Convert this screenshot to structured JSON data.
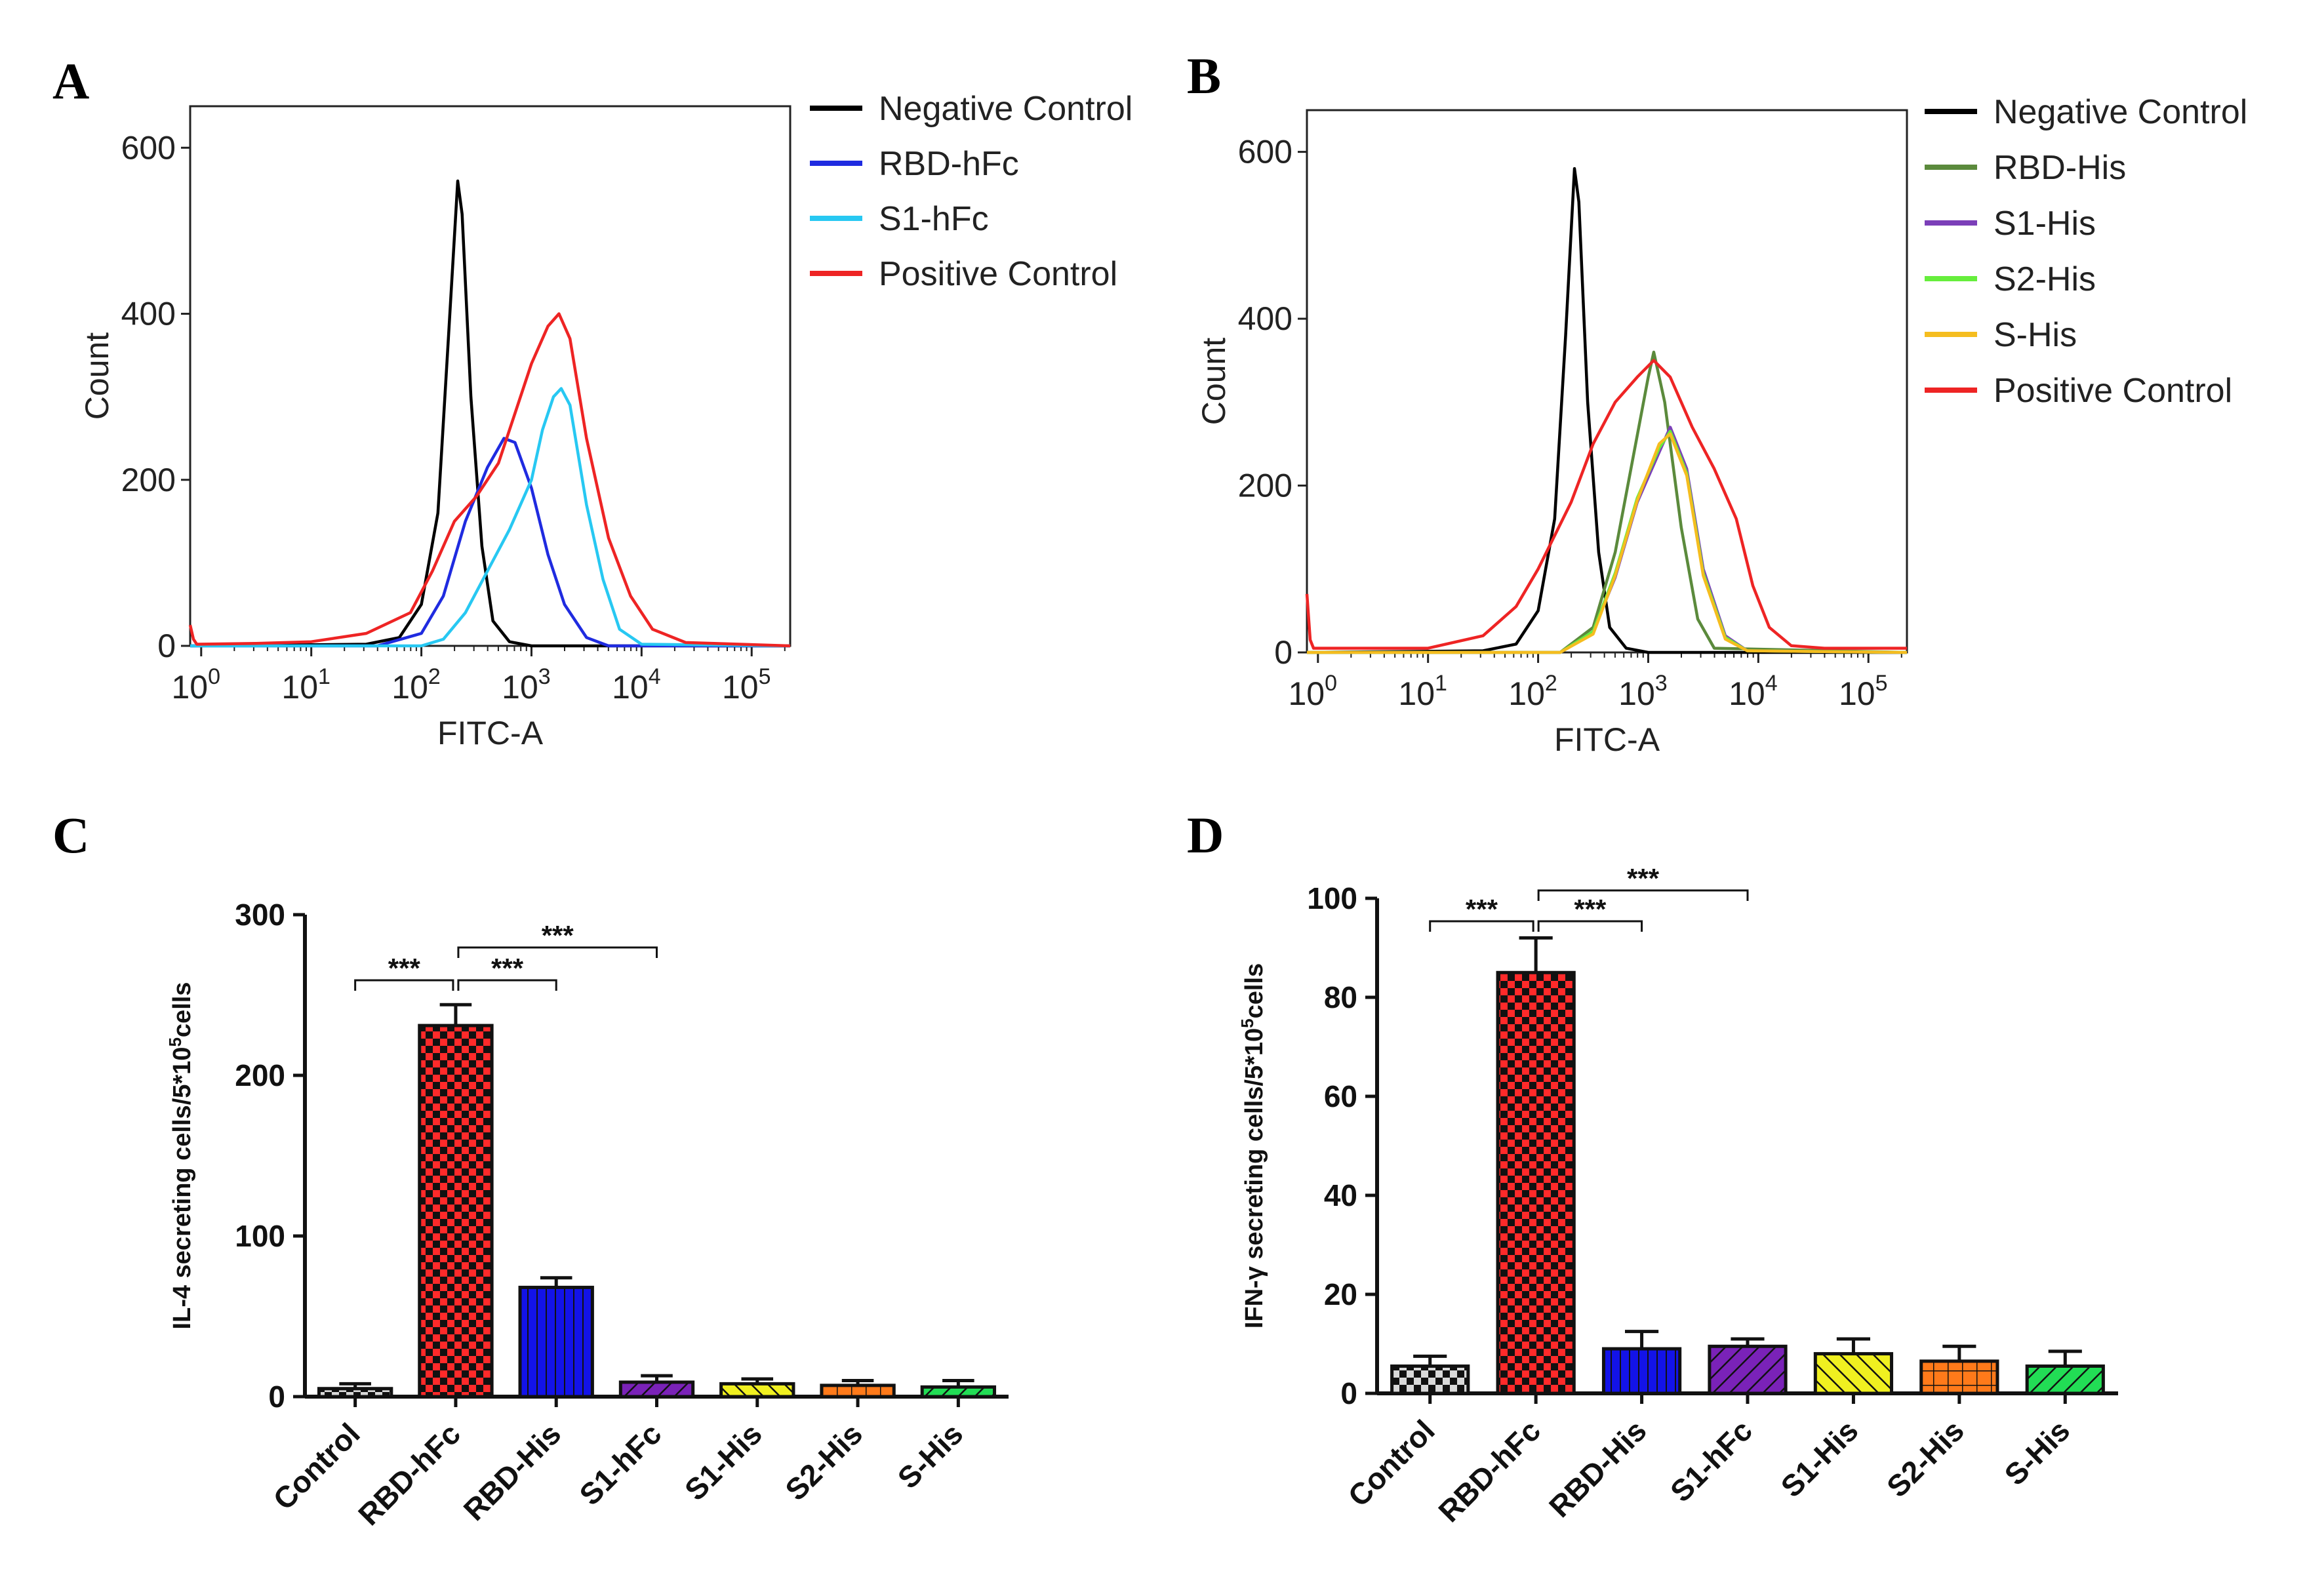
{
  "panels": {
    "a": "A",
    "b": "B",
    "c": "C",
    "d": "D"
  },
  "chart_data": [
    {
      "type": "line",
      "panel": "A",
      "xlabel": "FITC-A",
      "ylabel": "Count",
      "xscale": "log",
      "xlim_log10": [
        -0.1,
        5.35
      ],
      "ylim": [
        0,
        650
      ],
      "y_ticks": [
        0,
        200,
        400,
        600
      ],
      "x_tick_bases": [
        "10",
        "10",
        "10",
        "10",
        "10",
        "10"
      ],
      "x_tick_exps": [
        "0",
        "1",
        "2",
        "3",
        "4",
        "5"
      ],
      "legend_position": "right",
      "series": [
        {
          "name": "Negative Control",
          "color": "#000000",
          "points": [
            [
              -0.1,
              0
            ],
            [
              1.5,
              2
            ],
            [
              1.8,
              10
            ],
            [
              2.0,
              50
            ],
            [
              2.15,
              160
            ],
            [
              2.25,
              380
            ],
            [
              2.33,
              560
            ],
            [
              2.37,
              520
            ],
            [
              2.45,
              300
            ],
            [
              2.55,
              120
            ],
            [
              2.65,
              30
            ],
            [
              2.8,
              5
            ],
            [
              3.0,
              0
            ],
            [
              5.35,
              0
            ]
          ]
        },
        {
          "name": "RBD-hFc",
          "color": "#1f2be0",
          "points": [
            [
              -0.1,
              0
            ],
            [
              1.6,
              0
            ],
            [
              2.0,
              15
            ],
            [
              2.2,
              60
            ],
            [
              2.4,
              150
            ],
            [
              2.6,
              215
            ],
            [
              2.75,
              250
            ],
            [
              2.85,
              245
            ],
            [
              3.0,
              190
            ],
            [
              3.15,
              110
            ],
            [
              3.3,
              50
            ],
            [
              3.5,
              10
            ],
            [
              3.7,
              0
            ],
            [
              5.35,
              0
            ]
          ]
        },
        {
          "name": "S1-hFc",
          "color": "#27c8f2",
          "points": [
            [
              -0.1,
              0
            ],
            [
              2.0,
              0
            ],
            [
              2.2,
              8
            ],
            [
              2.4,
              40
            ],
            [
              2.6,
              90
            ],
            [
              2.8,
              140
            ],
            [
              3.0,
              200
            ],
            [
              3.1,
              260
            ],
            [
              3.2,
              300
            ],
            [
              3.27,
              310
            ],
            [
              3.35,
              290
            ],
            [
              3.5,
              170
            ],
            [
              3.65,
              80
            ],
            [
              3.8,
              20
            ],
            [
              4.0,
              2
            ],
            [
              5.35,
              0
            ]
          ]
        },
        {
          "name": "Positive Control",
          "color": "#ee2424",
          "points": [
            [
              -0.1,
              25
            ],
            [
              -0.07,
              8
            ],
            [
              -0.04,
              2
            ],
            [
              0.5,
              3
            ],
            [
              1.0,
              5
            ],
            [
              1.5,
              15
            ],
            [
              1.9,
              40
            ],
            [
              2.1,
              90
            ],
            [
              2.3,
              150
            ],
            [
              2.5,
              180
            ],
            [
              2.7,
              220
            ],
            [
              2.85,
              280
            ],
            [
              3.0,
              340
            ],
            [
              3.15,
              385
            ],
            [
              3.25,
              400
            ],
            [
              3.35,
              370
            ],
            [
              3.5,
              250
            ],
            [
              3.7,
              130
            ],
            [
              3.9,
              60
            ],
            [
              4.1,
              20
            ],
            [
              4.4,
              4
            ],
            [
              5.35,
              0
            ]
          ]
        }
      ]
    },
    {
      "type": "line",
      "panel": "B",
      "xlabel": "FITC-A",
      "ylabel": "Count",
      "xscale": "log",
      "xlim_log10": [
        -0.1,
        5.35
      ],
      "ylim": [
        0,
        650
      ],
      "y_ticks": [
        0,
        200,
        400,
        600
      ],
      "x_tick_bases": [
        "10",
        "10",
        "10",
        "10",
        "10",
        "10"
      ],
      "x_tick_exps": [
        "0",
        "1",
        "2",
        "3",
        "4",
        "5"
      ],
      "legend_position": "right",
      "series": [
        {
          "name": "Negative Control",
          "color": "#000000",
          "points": [
            [
              -0.1,
              0
            ],
            [
              1.5,
              2
            ],
            [
              1.8,
              10
            ],
            [
              2.0,
              50
            ],
            [
              2.15,
              160
            ],
            [
              2.25,
              380
            ],
            [
              2.33,
              580
            ],
            [
              2.37,
              540
            ],
            [
              2.45,
              300
            ],
            [
              2.55,
              120
            ],
            [
              2.65,
              30
            ],
            [
              2.8,
              5
            ],
            [
              3.0,
              0
            ],
            [
              5.35,
              0
            ]
          ]
        },
        {
          "name": "RBD-His",
          "color": "#5b8a3c",
          "points": [
            [
              -0.1,
              0
            ],
            [
              2.2,
              0
            ],
            [
              2.5,
              30
            ],
            [
              2.7,
              120
            ],
            [
              2.9,
              260
            ],
            [
              3.0,
              330
            ],
            [
              3.05,
              360
            ],
            [
              3.15,
              300
            ],
            [
              3.3,
              150
            ],
            [
              3.45,
              40
            ],
            [
              3.6,
              5
            ],
            [
              5.35,
              0
            ]
          ]
        },
        {
          "name": "S1-His",
          "color": "#7b3fb8",
          "points": [
            [
              -0.1,
              0
            ],
            [
              2.2,
              0
            ],
            [
              2.5,
              25
            ],
            [
              2.7,
              90
            ],
            [
              2.9,
              180
            ],
            [
              3.1,
              240
            ],
            [
              3.2,
              270
            ],
            [
              3.35,
              220
            ],
            [
              3.5,
              100
            ],
            [
              3.7,
              20
            ],
            [
              3.9,
              2
            ],
            [
              5.35,
              0
            ]
          ]
        },
        {
          "name": "S2-His",
          "color": "#66ee3c",
          "points": [
            [
              -0.1,
              0
            ],
            [
              2.2,
              0
            ],
            [
              2.5,
              25
            ],
            [
              2.7,
              95
            ],
            [
              2.9,
              185
            ],
            [
              3.1,
              245
            ],
            [
              3.2,
              265
            ],
            [
              3.35,
              215
            ],
            [
              3.5,
              95
            ],
            [
              3.7,
              18
            ],
            [
              3.9,
              2
            ],
            [
              5.35,
              0
            ]
          ]
        },
        {
          "name": "S-His",
          "color": "#f5bd1f",
          "points": [
            [
              -0.1,
              0
            ],
            [
              2.2,
              0
            ],
            [
              2.5,
              22
            ],
            [
              2.7,
              92
            ],
            [
              2.9,
              182
            ],
            [
              3.1,
              250
            ],
            [
              3.2,
              262
            ],
            [
              3.35,
              212
            ],
            [
              3.5,
              92
            ],
            [
              3.7,
              16
            ],
            [
              3.9,
              2
            ],
            [
              5.35,
              0
            ]
          ]
        },
        {
          "name": "Positive Control",
          "color": "#ee2424",
          "points": [
            [
              -0.1,
              70
            ],
            [
              -0.07,
              15
            ],
            [
              -0.04,
              5
            ],
            [
              1.0,
              5
            ],
            [
              1.5,
              20
            ],
            [
              1.8,
              55
            ],
            [
              2.0,
              100
            ],
            [
              2.3,
              180
            ],
            [
              2.5,
              250
            ],
            [
              2.7,
              300
            ],
            [
              2.9,
              330
            ],
            [
              3.05,
              350
            ],
            [
              3.2,
              330
            ],
            [
              3.4,
              270
            ],
            [
              3.6,
              220
            ],
            [
              3.8,
              160
            ],
            [
              3.95,
              80
            ],
            [
              4.1,
              30
            ],
            [
              4.3,
              8
            ],
            [
              4.6,
              5
            ],
            [
              5.35,
              5
            ]
          ]
        }
      ]
    },
    {
      "type": "bar",
      "panel": "C",
      "ylabel": "IL-4 secreting cells/5*10",
      "ylabel_exp": "5",
      "ylabel_tail": "cells",
      "ylim": [
        0,
        300
      ],
      "y_ticks": [
        0,
        100,
        200,
        300
      ],
      "categories": [
        "Control",
        "RBD-hFc",
        "RBD-His",
        "S1-hFc",
        "S1-His",
        "S2-His",
        "S-His"
      ],
      "values": [
        5,
        231,
        68,
        9,
        8,
        7,
        6
      ],
      "errors": [
        3,
        13,
        6,
        4,
        3,
        3,
        4
      ],
      "colors": [
        "#d9d9d9",
        "#ff2a2a",
        "#1313e8",
        "#7a22b8",
        "#f0f020",
        "#ff7a1a",
        "#22dd55"
      ],
      "patterns": [
        "checker",
        "checker",
        "vlines",
        "diag-right",
        "diag-left",
        "grid",
        "diag-right"
      ],
      "significance": [
        {
          "from": 0,
          "to": 1,
          "label": "***"
        },
        {
          "from": 1,
          "to": 2,
          "label": "***"
        },
        {
          "from": 1,
          "to": 3,
          "label": "***"
        }
      ]
    },
    {
      "type": "bar",
      "panel": "D",
      "ylabel": "IFN-γ secreting cells/5*10",
      "ylabel_exp": "5",
      "ylabel_tail": "cells",
      "ylim": [
        0,
        100
      ],
      "y_ticks": [
        0,
        20,
        40,
        60,
        80,
        100
      ],
      "categories": [
        "Control",
        "RBD-hFc",
        "RBD-His",
        "S1-hFc",
        "S1-His",
        "S2-His",
        "S-His"
      ],
      "values": [
        5.5,
        85,
        9,
        9.5,
        8,
        6.5,
        5.5
      ],
      "errors": [
        2,
        7,
        3.5,
        1.5,
        3,
        3,
        3
      ],
      "colors": [
        "#d9d9d9",
        "#ff2a2a",
        "#1313e8",
        "#7a22b8",
        "#f0f020",
        "#ff7a1a",
        "#22dd55"
      ],
      "patterns": [
        "checker",
        "checker",
        "vlines",
        "diag-right",
        "diag-left",
        "grid",
        "diag-right"
      ],
      "significance": [
        {
          "from": 0,
          "to": 1,
          "label": "***"
        },
        {
          "from": 1,
          "to": 2,
          "label": "***"
        },
        {
          "from": 1,
          "to": 3,
          "label": "***"
        }
      ]
    }
  ]
}
